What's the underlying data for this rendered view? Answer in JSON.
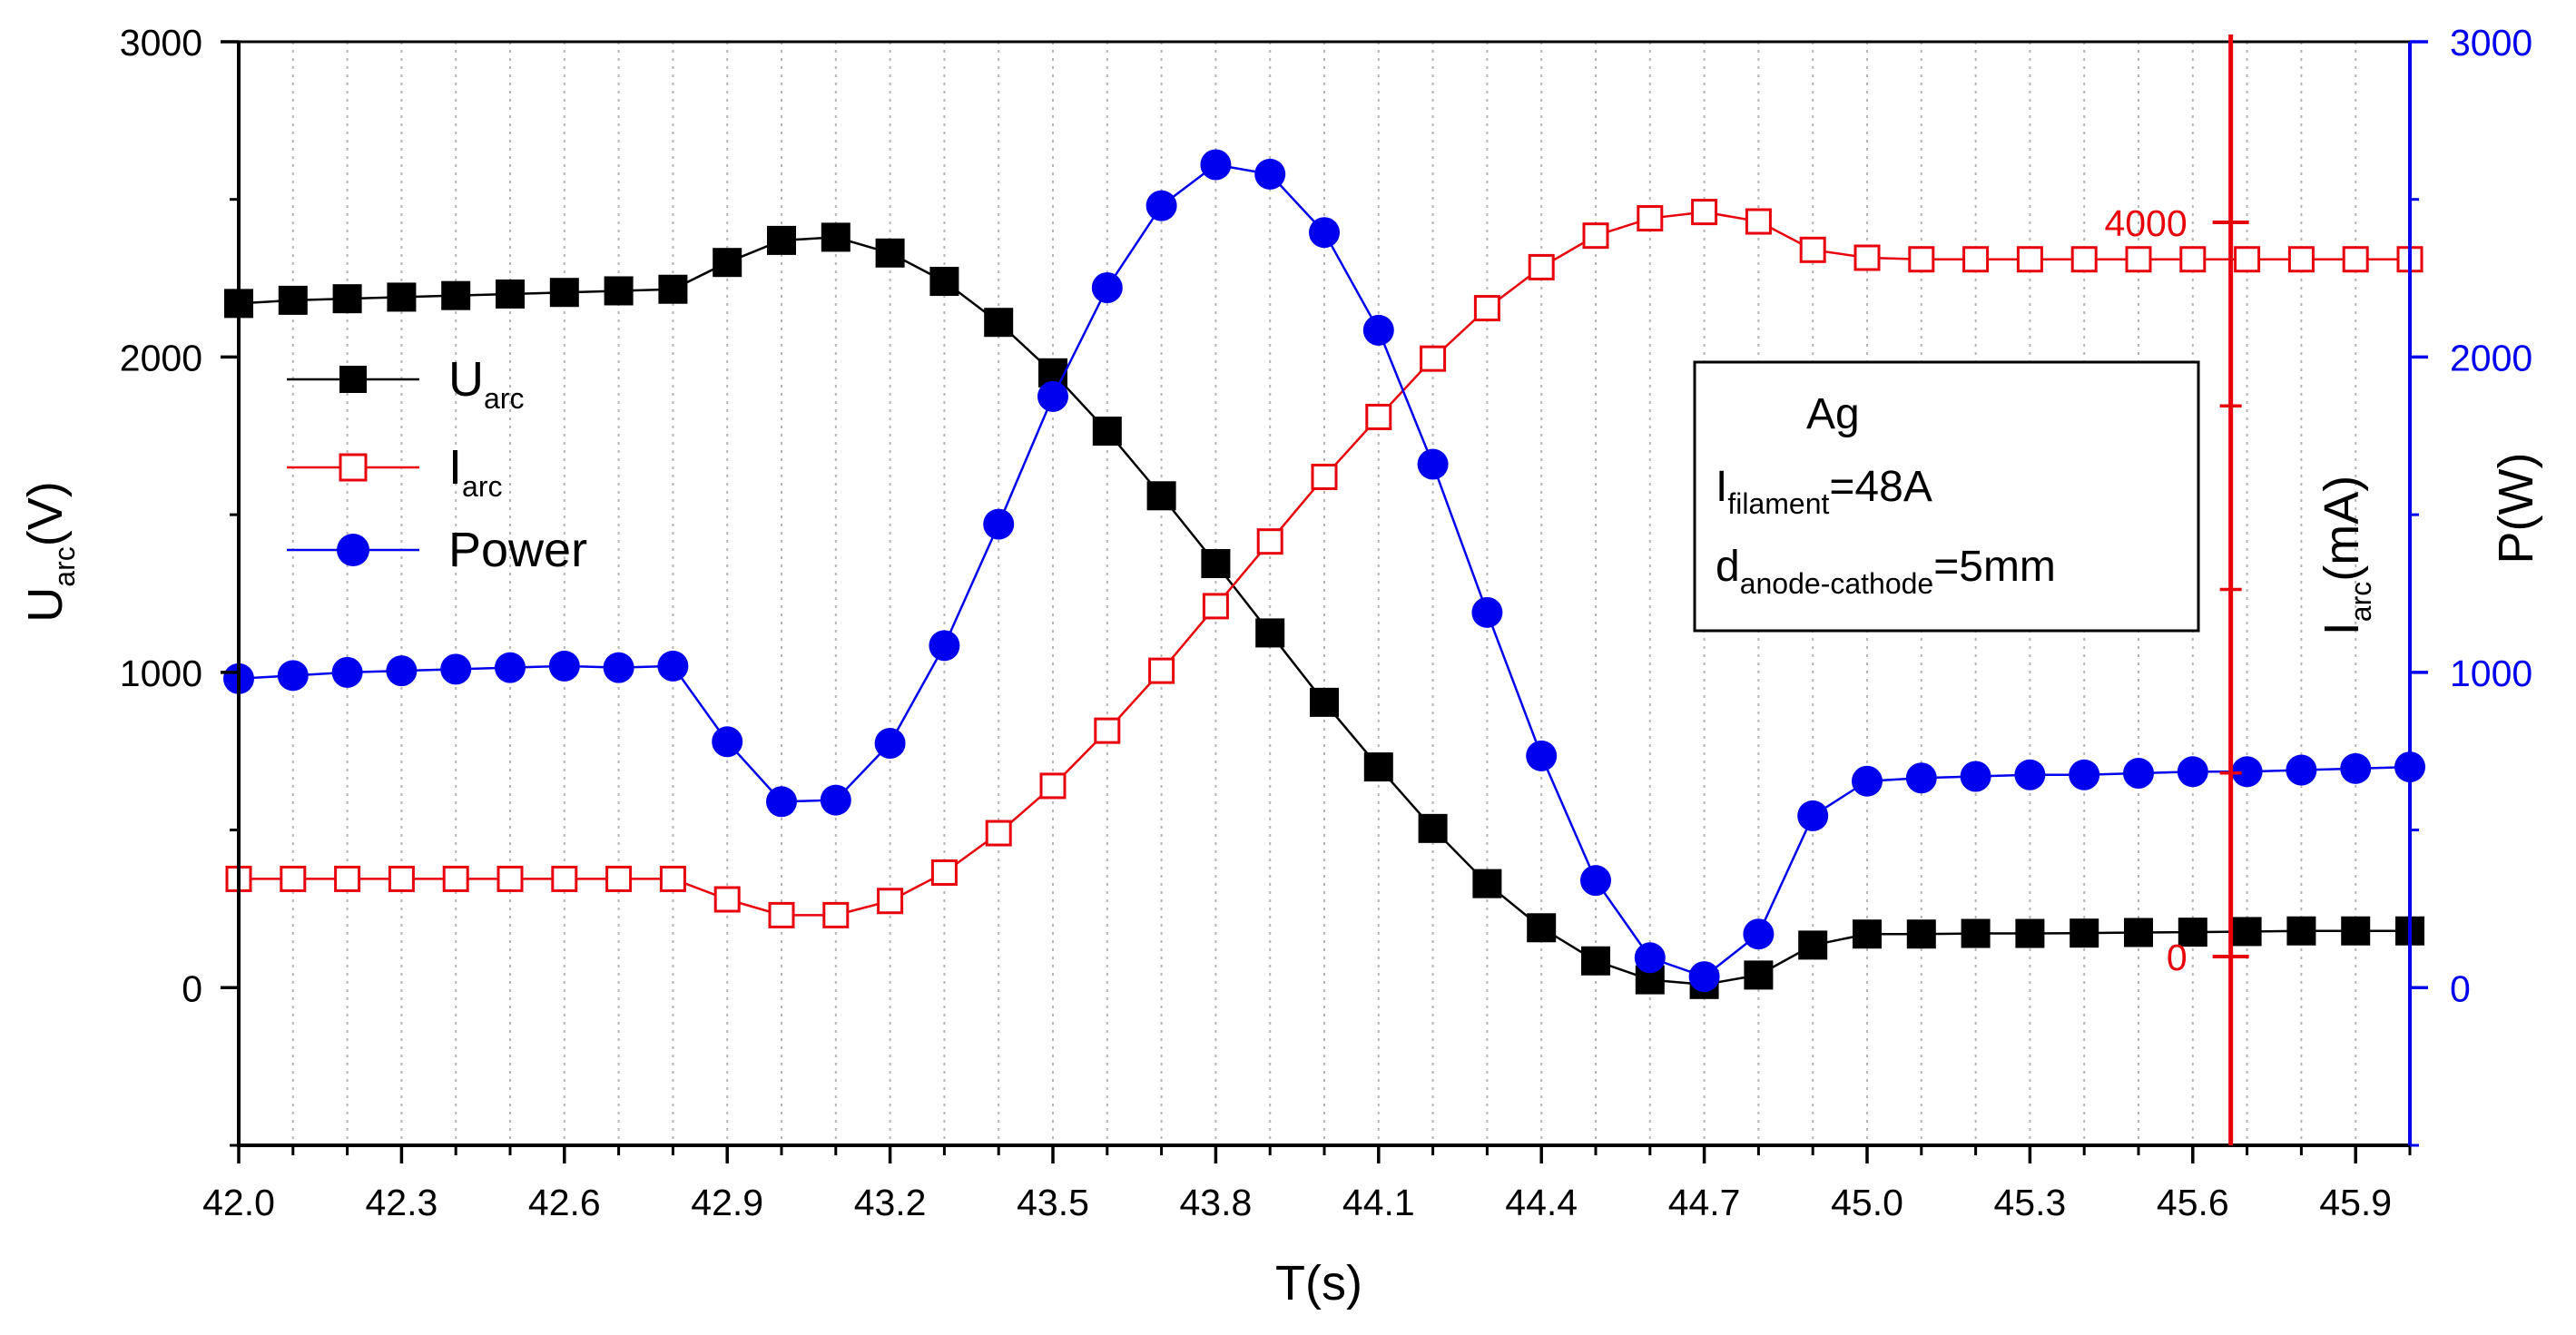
{
  "chart_data": {
    "type": "line",
    "title": "",
    "xlabel": "T(s)",
    "xlim": [
      42.0,
      46.0
    ],
    "x_ticks": [
      42.0,
      42.3,
      42.6,
      42.9,
      43.2,
      43.5,
      43.8,
      44.1,
      44.4,
      44.7,
      45.0,
      45.3,
      45.6,
      45.9
    ],
    "x_tick_labels": [
      "42.0",
      "42.3",
      "42.6",
      "42.9",
      "43.2",
      "43.5",
      "43.8",
      "44.1",
      "44.4",
      "44.7",
      "45.0",
      "45.3",
      "45.6",
      "45.9"
    ],
    "grid": "vertical-dotted",
    "y_left": {
      "label_main": "U",
      "label_sub": "arc",
      "label_unit": "(V)",
      "ylim": [
        -500,
        3000
      ],
      "ticks": [
        0,
        1000,
        2000,
        3000
      ],
      "tick_labels": [
        "0",
        "1000",
        "2000",
        "3000"
      ]
    },
    "y_right_current": {
      "label_main": "I",
      "label_sub": "arc",
      "label_unit": "(mA)",
      "at_x": 45.67,
      "color": "#e8000b",
      "ticks": [
        0,
        4000
      ],
      "tick_labels": [
        "0",
        "4000"
      ]
    },
    "y_right_power": {
      "label": "P(W)",
      "ylim": [
        -500,
        3000
      ],
      "color": "#0000ee",
      "ticks": [
        0,
        1000,
        2000,
        3000
      ],
      "tick_labels": [
        "0",
        "1000",
        "2000",
        "3000"
      ]
    },
    "x": [
      42.0,
      42.1,
      42.2,
      42.3,
      42.4,
      42.5,
      42.6,
      42.7,
      42.8,
      42.9,
      43.0,
      43.1,
      43.2,
      43.3,
      43.4,
      43.5,
      43.6,
      43.7,
      43.8,
      43.9,
      44.0,
      44.1,
      44.2,
      44.3,
      44.4,
      44.5,
      44.6,
      44.7,
      44.8,
      44.9,
      45.0,
      45.1,
      45.2,
      45.3,
      45.4,
      45.5,
      45.6,
      45.7,
      45.8,
      45.9,
      46.0
    ],
    "series": [
      {
        "name": "U_arc",
        "axis": "left",
        "color": "#000000",
        "marker": "filled-square",
        "values": [
          2170,
          2180,
          2185,
          2190,
          2195,
          2200,
          2205,
          2210,
          2215,
          2300,
          2370,
          2380,
          2330,
          2240,
          2110,
          1950,
          1765,
          1560,
          1345,
          1125,
          905,
          700,
          505,
          330,
          190,
          85,
          25,
          10,
          40,
          135,
          170,
          170,
          172,
          172,
          173,
          175,
          176,
          178,
          180,
          180,
          180
        ]
      },
      {
        "name": "I_arc",
        "axis": "left-scaled",
        "color": "#e8000b",
        "marker": "open-square",
        "values_on_left_scale": [
          345,
          345,
          345,
          345,
          345,
          345,
          345,
          345,
          345,
          280,
          230,
          230,
          275,
          365,
          490,
          640,
          815,
          1005,
          1210,
          1415,
          1620,
          1810,
          1995,
          2155,
          2285,
          2385,
          2440,
          2460,
          2430,
          2340,
          2315,
          2310,
          2310,
          2310,
          2310,
          2310,
          2310,
          2310,
          2310,
          2310,
          2310
        ]
      },
      {
        "name": "Power",
        "axis": "right",
        "color": "#0000ee",
        "marker": "filled-circle",
        "values": [
          980,
          990,
          1000,
          1005,
          1010,
          1015,
          1020,
          1015,
          1020,
          780,
          590,
          595,
          775,
          1085,
          1470,
          1875,
          2220,
          2480,
          2610,
          2580,
          2395,
          2085,
          1660,
          1190,
          735,
          340,
          95,
          35,
          170,
          545,
          655,
          665,
          670,
          675,
          675,
          680,
          685,
          685,
          690,
          695,
          700
        ]
      }
    ],
    "legend": {
      "position": "upper-left",
      "entries": [
        {
          "label_main": "U",
          "label_sub": "arc"
        },
        {
          "label_main": "I",
          "label_sub": "arc"
        },
        {
          "label_main": "Power",
          "label_sub": ""
        }
      ]
    },
    "annotation": {
      "lines": [
        {
          "main": "Ag",
          "sub": "",
          "tail": ""
        },
        {
          "main": "I",
          "sub": "filament",
          "tail": "=48A"
        },
        {
          "main": "d",
          "sub": "anode-cathode",
          "tail": "=5mm"
        }
      ]
    }
  }
}
